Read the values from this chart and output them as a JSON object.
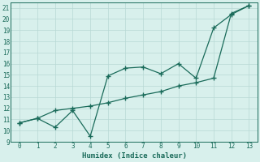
{
  "xlabel": "Humidex (Indice chaleur)",
  "x_line1": [
    0,
    1,
    2,
    3,
    4,
    5,
    6,
    7,
    8,
    9,
    10,
    11,
    12,
    13
  ],
  "y_line1": [
    10.7,
    11.1,
    10.3,
    11.8,
    9.5,
    14.9,
    15.6,
    15.7,
    15.1,
    16.0,
    14.7,
    19.2,
    20.4,
    21.2
  ],
  "x_line2": [
    0,
    1,
    2,
    3,
    4,
    5,
    6,
    7,
    8,
    9,
    10,
    11,
    12,
    13
  ],
  "y_line2": [
    10.7,
    11.1,
    11.8,
    12.0,
    12.2,
    12.5,
    12.9,
    13.2,
    13.5,
    14.0,
    14.3,
    14.7,
    20.5,
    21.2
  ],
  "line_color": "#1a6b5a",
  "bg_color": "#d8f0ec",
  "grid_color": "#b8d8d4",
  "xlim": [
    -0.5,
    13.5
  ],
  "ylim": [
    9,
    21.5
  ],
  "xticks": [
    0,
    1,
    2,
    3,
    4,
    5,
    6,
    7,
    8,
    9,
    10,
    11,
    12,
    13
  ],
  "yticks": [
    9,
    10,
    11,
    12,
    13,
    14,
    15,
    16,
    17,
    18,
    19,
    20,
    21
  ],
  "title_fontsize": 6.5,
  "label_fontsize": 6.5,
  "tick_fontsize": 5.5
}
